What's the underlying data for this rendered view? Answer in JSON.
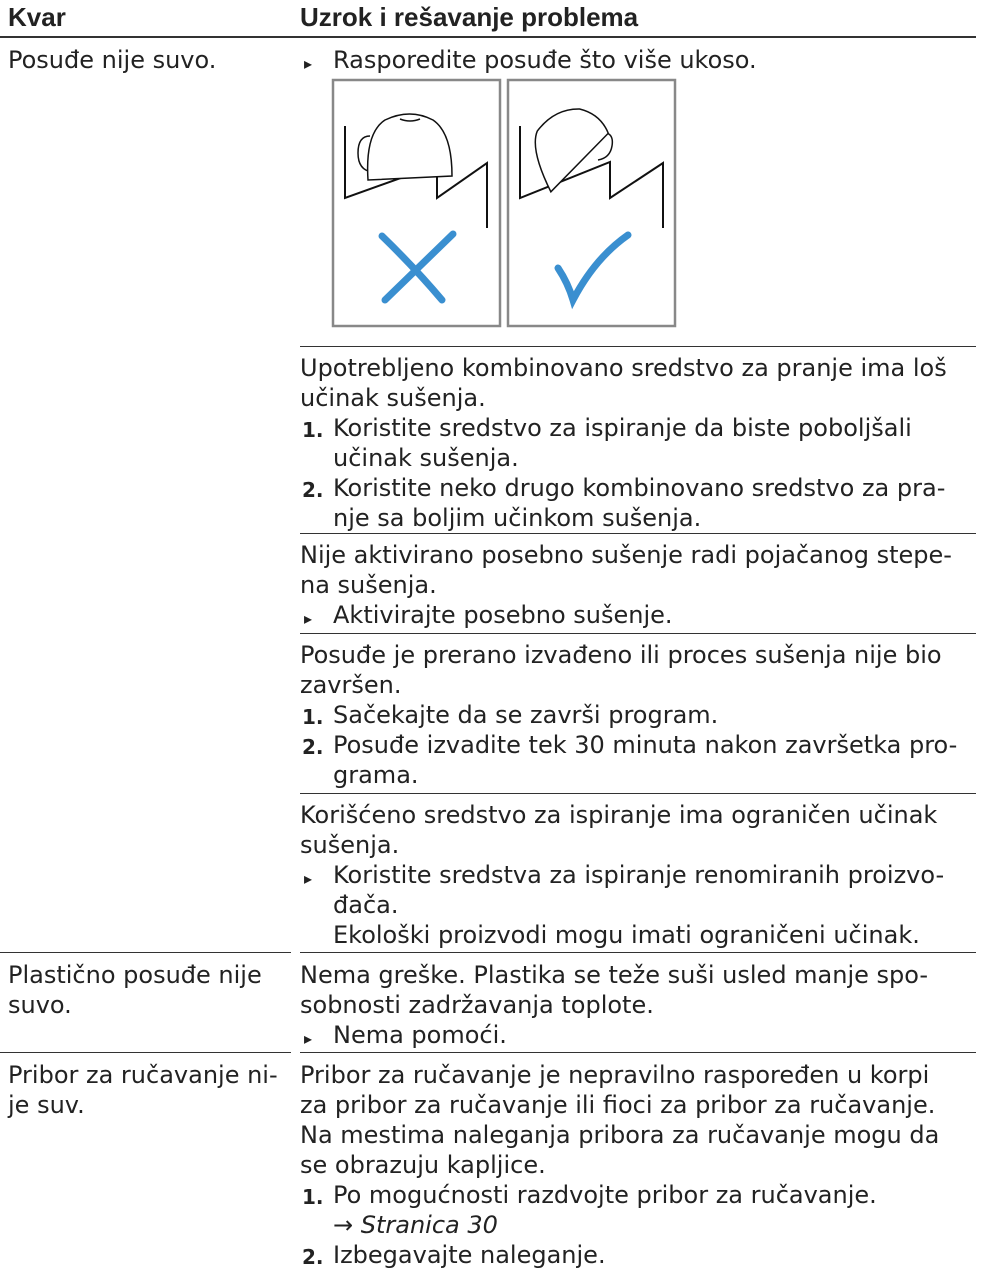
{
  "header": {
    "fault": "Kvar",
    "remedy": "Uzrok i rešavanje problema"
  },
  "rows": [
    {
      "fault": [
        "Posuđe nije suvo."
      ],
      "causes": [
        {
          "steps": [
            {
              "marker": "▸",
              "lines": [
                "Rasporedite posuđe što više ukoso."
              ]
            }
          ]
        },
        {
          "lines": [
            "Upotrebljeno kombinovano sredstvo za pranje ima loš",
            "učinak sušenja."
          ],
          "steps": [
            {
              "marker": "1.",
              "lines": [
                "Koristite sredstvo za ispiranje da biste poboljšali",
                "učinak sušenja."
              ]
            },
            {
              "marker": "2.",
              "lines": [
                "Koristite neko drugo kombinovano sredstvo za pra-",
                "nje sa boljim učinkom sušenja."
              ]
            }
          ]
        },
        {
          "lines": [
            "Nije aktivirano posebno sušenje radi pojačanog stepe-",
            "na sušenja."
          ],
          "steps": [
            {
              "marker": "▸",
              "lines": [
                "Aktivirajte posebno sušenje."
              ]
            }
          ]
        },
        {
          "lines": [
            "Posuđe je prerano izvađeno ili proces sušenja nije bio",
            "završen."
          ],
          "steps": [
            {
              "marker": "1.",
              "lines": [
                "Sačekajte da se završi program."
              ]
            },
            {
              "marker": "2.",
              "lines": [
                "Posuđe izvadite tek 30 minuta nakon završetka pro-",
                "grama."
              ]
            }
          ]
        },
        {
          "lines": [
            "Korišćeno sredstvo za ispiranje ima ograničen učinak",
            "sušenja."
          ],
          "steps": [
            {
              "marker": "▸",
              "lines": [
                "Koristite sredstva za ispiranje renomiranih proizvo-",
                "đača."
              ]
            }
          ],
          "note": "Ekološki proizvodi mogu imati ograničeni učinak."
        }
      ]
    },
    {
      "fault": [
        "Plastično posuđe nije",
        "suvo."
      ],
      "causes": [
        {
          "lines": [
            "Nema greške. Plastika se teže suši usled manje spo-",
            "sobnosti zadržavanja toplote."
          ],
          "steps": [
            {
              "marker": "▸",
              "lines": [
                "Nema pomoći."
              ]
            }
          ]
        }
      ]
    },
    {
      "fault": [
        "Pribor za ručavanje ni-",
        "je suv."
      ],
      "causes": [
        {
          "lines": [
            "Pribor za ručavanje je nepravilno raspoređen u korpi",
            "za pribor za ručavanje ili fioci za pribor za ručavanje.",
            "Na mestima naleganja pribora za ručavanje mogu da",
            "se obrazuju kapljice."
          ],
          "steps": [
            {
              "marker": "1.",
              "lines": [
                "Po mogućnosti razdvojte pribor za ručavanje.",
                "→ Stranica 30"
              ]
            },
            {
              "marker": "2.",
              "lines": [
                "Izbegavajte naleganje."
              ]
            }
          ]
        }
      ]
    }
  ]
}
